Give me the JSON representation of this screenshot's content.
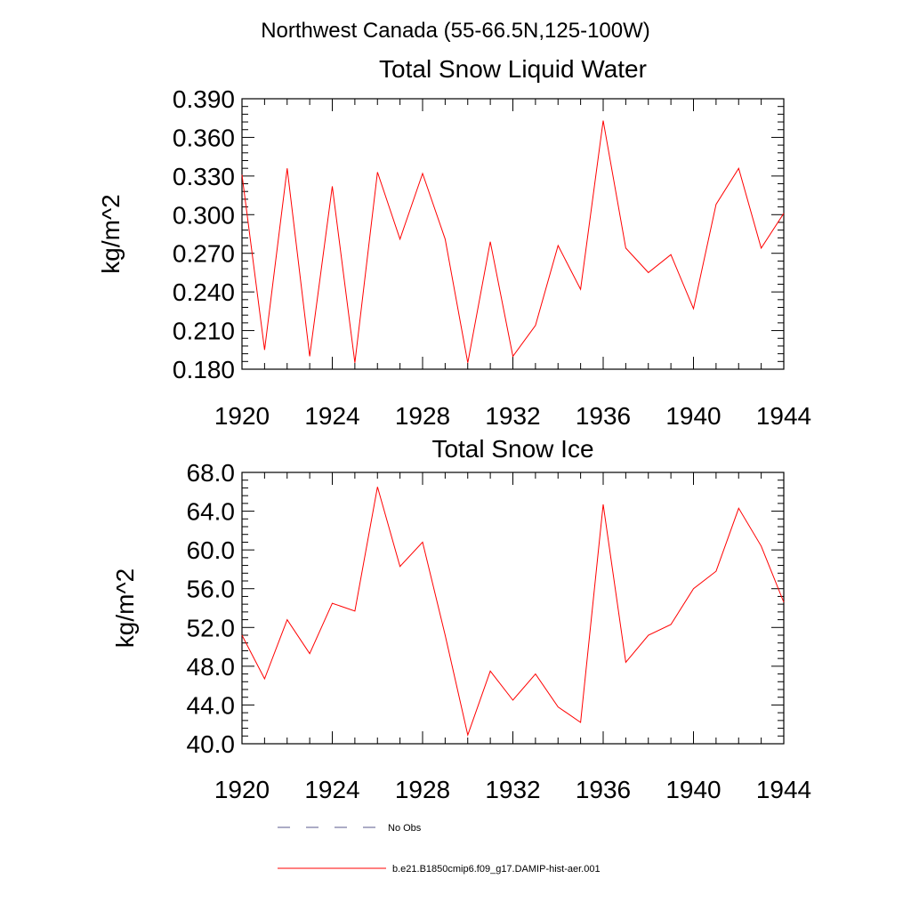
{
  "figure": {
    "supertitle": "Northwest Canada (55-66.5N,125-100W)"
  },
  "colors": {
    "series_line": "#ff0000",
    "no_obs_line": "#5a5a8c",
    "axis": "#000000",
    "background": "#ffffff"
  },
  "legend": {
    "no_obs_label": "No Obs",
    "series_label": "b.e21.B1850cmip6.f09_g17.DAMIP-hist-aer.001"
  },
  "chart_data": [
    {
      "type": "line",
      "title": "Total Snow Liquid Water",
      "xlabel": "",
      "ylabel": "kg/m^2",
      "xlim": [
        1920,
        1944
      ],
      "ylim": [
        0.18,
        0.39
      ],
      "x_ticks": [
        "1920",
        "1924",
        "1928",
        "1932",
        "1936",
        "1940",
        "1944"
      ],
      "y_ticks": [
        "0.180",
        "0.210",
        "0.240",
        "0.270",
        "0.300",
        "0.330",
        "0.360",
        "0.390"
      ],
      "grid": false,
      "series": [
        {
          "name": "b.e21.B1850cmip6.f09_g17.DAMIP-hist-aer.001",
          "x": [
            1920,
            1921,
            1922,
            1923,
            1924,
            1925,
            1926,
            1927,
            1928,
            1929,
            1930,
            1931,
            1932,
            1933,
            1934,
            1935,
            1936,
            1937,
            1938,
            1939,
            1940,
            1941,
            1942,
            1943,
            1944
          ],
          "values": [
            0.331,
            0.195,
            0.336,
            0.19,
            0.322,
            0.185,
            0.333,
            0.281,
            0.332,
            0.281,
            0.185,
            0.279,
            0.19,
            0.214,
            0.276,
            0.242,
            0.373,
            0.274,
            0.255,
            0.269,
            0.227,
            0.308,
            0.336,
            0.274,
            0.301
          ]
        }
      ]
    },
    {
      "type": "line",
      "title": "Total Snow Ice",
      "xlabel": "",
      "ylabel": "kg/m^2",
      "xlim": [
        1920,
        1944
      ],
      "ylim": [
        40.0,
        68.0
      ],
      "x_ticks": [
        "1920",
        "1924",
        "1928",
        "1932",
        "1936",
        "1940",
        "1944"
      ],
      "y_ticks": [
        "40.0",
        "44.0",
        "48.0",
        "52.0",
        "56.0",
        "60.0",
        "64.0",
        "68.0"
      ],
      "grid": false,
      "series": [
        {
          "name": "b.e21.B1850cmip6.f09_g17.DAMIP-hist-aer.001",
          "x": [
            1920,
            1921,
            1922,
            1923,
            1924,
            1925,
            1926,
            1927,
            1928,
            1929,
            1930,
            1931,
            1932,
            1933,
            1934,
            1935,
            1936,
            1937,
            1938,
            1939,
            1940,
            1941,
            1942,
            1943,
            1944
          ],
          "values": [
            51.2,
            46.7,
            52.8,
            49.3,
            54.5,
            53.7,
            66.5,
            58.3,
            60.8,
            51.2,
            40.9,
            47.5,
            44.5,
            47.2,
            43.8,
            42.2,
            64.7,
            48.4,
            51.2,
            52.3,
            56.0,
            57.8,
            64.3,
            60.4,
            54.6
          ]
        }
      ]
    }
  ]
}
